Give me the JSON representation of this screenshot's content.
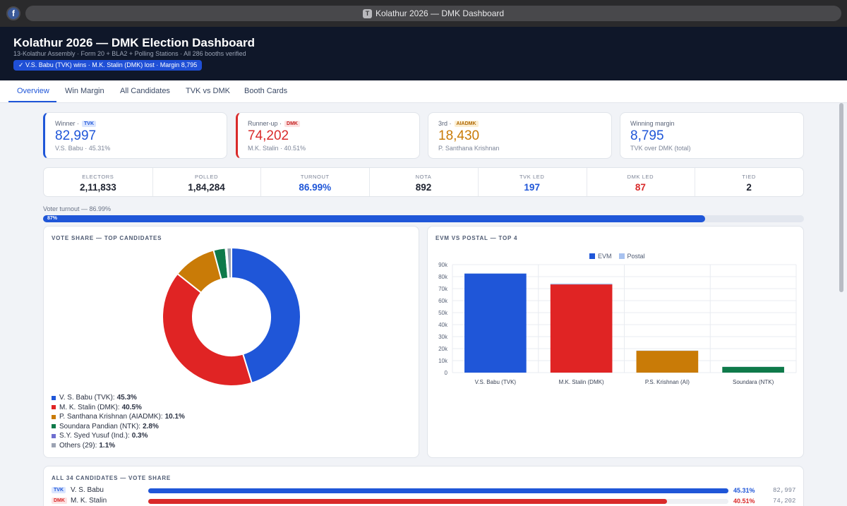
{
  "browser": {
    "tab_letter": "T",
    "title": "Kolathur 2026 — DMK Dashboard",
    "site_icon": "facebook-icon"
  },
  "header": {
    "title": "Kolathur 2026 — DMK Election Dashboard",
    "subtitle": "13-Kolathur Assembly · Form 20 + BLA2 + Polling Stations · All 286 booths verified",
    "result_pill": "✓ V.S. Babu (TVK) wins · M.K. Stalin (DMK) lost · Margin 8,795"
  },
  "tabs": [
    {
      "label": "Overview",
      "active": true
    },
    {
      "label": "Win Margin"
    },
    {
      "label": "All Candidates"
    },
    {
      "label": "TVK vs DMK"
    },
    {
      "label": "Booth Cards"
    }
  ],
  "cards": [
    {
      "label": "Winner ·",
      "badge": "TVK",
      "value": "82,997",
      "foot": "V.S. Babu · 45.31%",
      "color": "#1f56d8",
      "badge_bg": "#dbe6ff",
      "badge_fg": "#1f56d8"
    },
    {
      "label": "Runner-up ·",
      "badge": "DMK",
      "value": "74,202",
      "foot": "M.K. Stalin · 40.51%",
      "color": "#d92a2a",
      "badge_bg": "#fde2e2",
      "badge_fg": "#c42323"
    },
    {
      "label": "3rd ·",
      "badge": "AIADMK",
      "value": "18,430",
      "foot": "P. Santhana Krishnan",
      "color": "#c97b07",
      "badge_bg": "#fcefd3",
      "badge_fg": "#b06a05"
    },
    {
      "label": "Winning margin",
      "badge": "",
      "value": "8,795",
      "foot": "TVK over DMK (total)",
      "color": "#1f56d8"
    }
  ],
  "stats": [
    {
      "label": "ELECTORS",
      "value": "2,11,833",
      "color": "#1e2330"
    },
    {
      "label": "POLLED",
      "value": "1,84,284",
      "color": "#1e2330"
    },
    {
      "label": "TURNOUT",
      "value": "86.99%",
      "color": "#1f56d8"
    },
    {
      "label": "NOTA",
      "value": "892",
      "color": "#1e2330"
    },
    {
      "label": "TVK LED",
      "value": "197",
      "color": "#1f56d8"
    },
    {
      "label": "DMK LED",
      "value": "87",
      "color": "#d92a2a"
    },
    {
      "label": "TIED",
      "value": "2",
      "color": "#1e2330"
    }
  ],
  "turnout": {
    "label": "Voter turnout — 86.99%",
    "bar_text": "87%",
    "fraction": 0.87
  },
  "vote_share_panel": {
    "title": "VOTE SHARE — TOP CANDIDATES",
    "slices": [
      {
        "name": "V. S. Babu (TVK):",
        "value_label": "45.3%",
        "pct": 45.3,
        "color": "#1f56d8"
      },
      {
        "name": "M. K. Stalin (DMK):",
        "value_label": "40.5%",
        "pct": 40.5,
        "color": "#e02424"
      },
      {
        "name": "P. Santhana Krishnan (AIADMK):",
        "value_label": "10.1%",
        "pct": 10.1,
        "color": "#c97b07"
      },
      {
        "name": "Soundara Pandian (NTK):",
        "value_label": "2.8%",
        "pct": 2.8,
        "color": "#0f7a4a"
      },
      {
        "name": "S.Y. Syed Yusuf (Ind.):",
        "value_label": "0.3%",
        "pct": 0.3,
        "color": "#6f6fd0"
      },
      {
        "name": "Others (29):",
        "value_label": "1.1%",
        "pct": 1.1,
        "color": "#9ca3b3"
      }
    ]
  },
  "evm_panel": {
    "title": "EVM VS POSTAL — TOP 4",
    "chart_data": {
      "type": "bar",
      "categories": [
        "V.S. Babu (TVK)",
        "M.K. Stalin (DMK)",
        "P.S. Krishnan (AI)",
        "Soundara (NTK)"
      ],
      "series": [
        {
          "name": "EVM",
          "values": [
            82400,
            73500,
            18200,
            4800
          ],
          "color": "#1f56d8"
        },
        {
          "name": "Postal",
          "values": [
            600,
            700,
            230,
            100
          ],
          "color": "#a8c2f0"
        }
      ],
      "bar_colors": [
        "#1f56d8",
        "#e02424",
        "#c97b07",
        "#0f7a4a"
      ],
      "ylim": [
        0,
        90000
      ],
      "yticks": [
        "0",
        "10k",
        "20k",
        "30k",
        "40k",
        "50k",
        "60k",
        "70k",
        "80k",
        "90k"
      ]
    }
  },
  "all_candidates": {
    "title": "ALL 34 CANDIDATES — VOTE SHARE",
    "rows": [
      {
        "badge": "TVK",
        "name": "V. S. Babu",
        "pct": "45.31%",
        "votes": "82,997",
        "share": 45.31,
        "color": "#1f56d8",
        "badge_bg": "#dbe6ff"
      },
      {
        "badge": "DMK",
        "name": "M. K. Stalin",
        "pct": "40.51%",
        "votes": "74,202",
        "share": 40.51,
        "color": "#d92a2a",
        "badge_bg": "#fde2e2"
      }
    ]
  }
}
